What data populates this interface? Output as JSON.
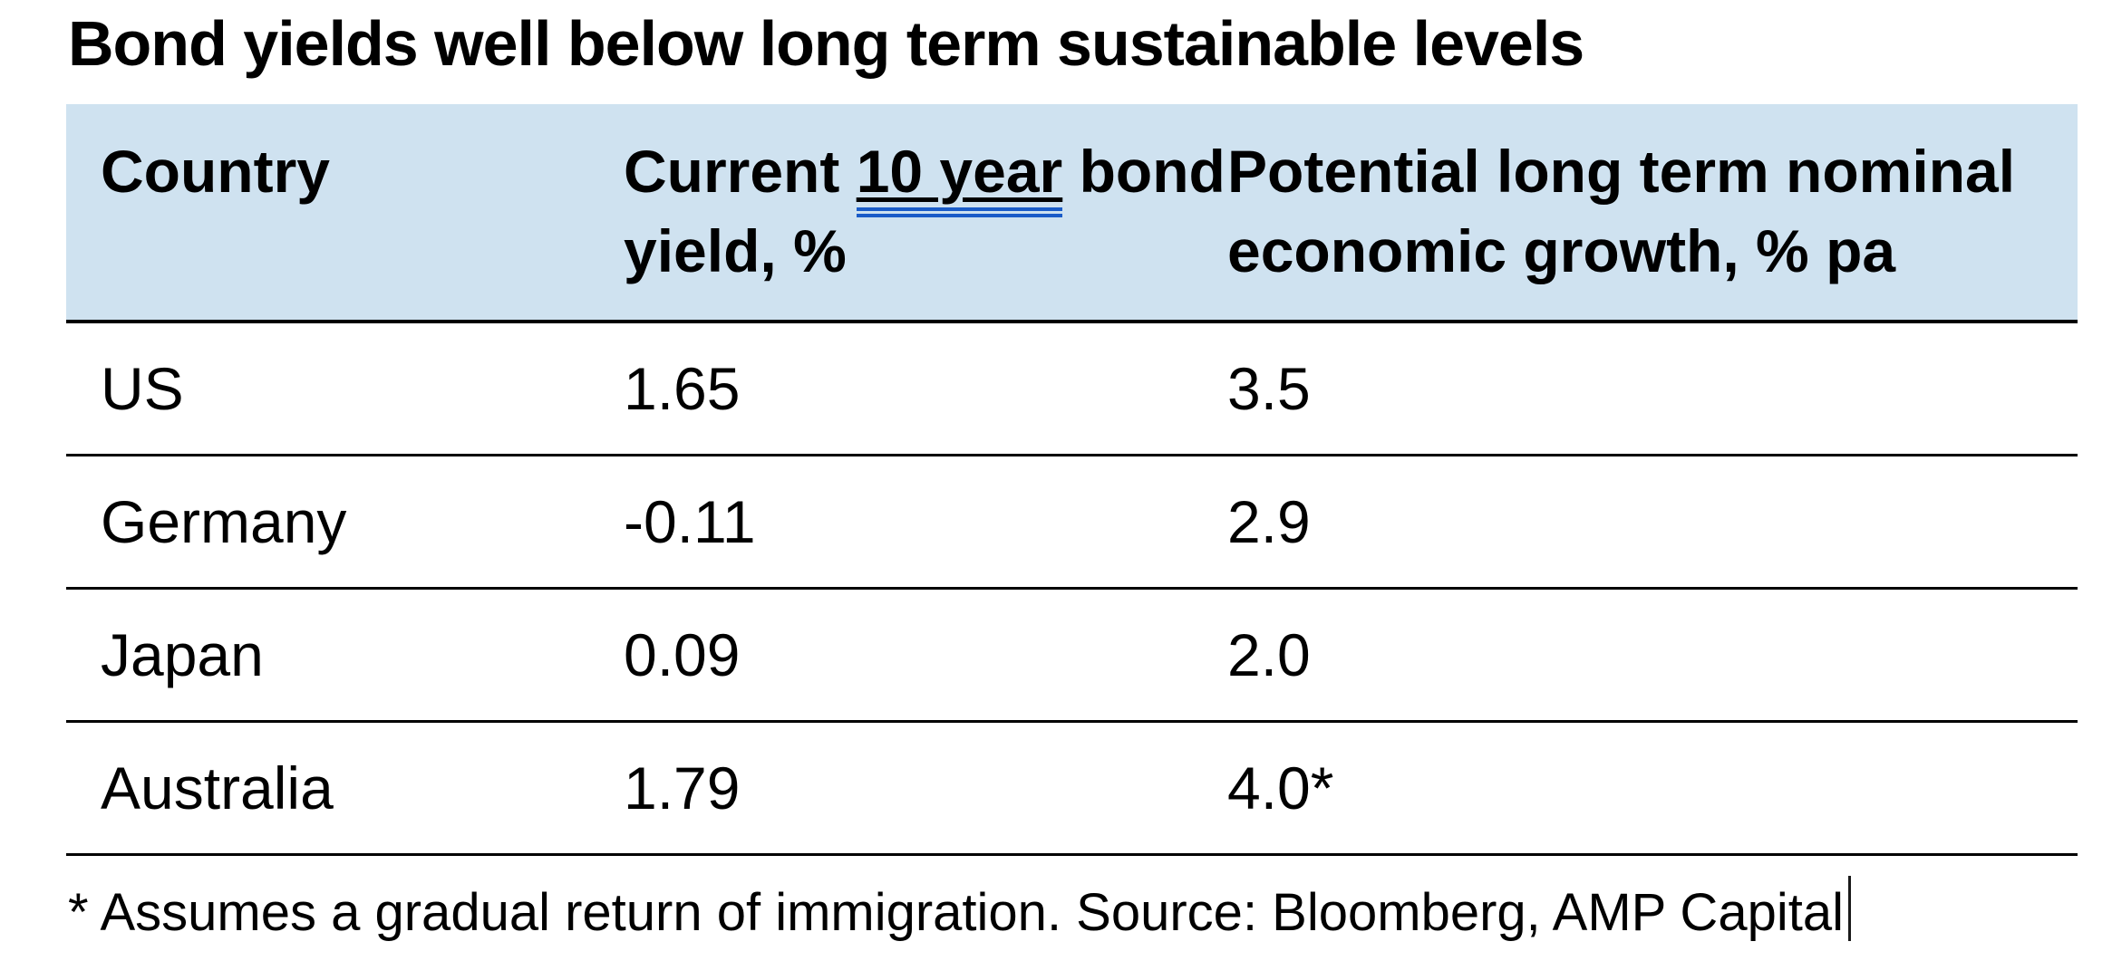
{
  "title": "Bond yields well below long term sustainable levels",
  "table": {
    "columns": [
      {
        "label": "Country"
      },
      {
        "label_prefix": "Current ",
        "label_underlined": "10 year",
        "label_suffix": " bond yield, %"
      },
      {
        "label": "Potential long term nominal economic growth, % pa"
      }
    ],
    "rows": [
      {
        "country": "US",
        "current_yield": "1.65",
        "potential_growth": "3.5"
      },
      {
        "country": "Germany",
        "current_yield": "-0.11",
        "potential_growth": "2.9"
      },
      {
        "country": "Japan",
        "current_yield": "0.09",
        "potential_growth": "2.0"
      },
      {
        "country": "Australia",
        "current_yield": "1.79",
        "potential_growth": "4.0*"
      }
    ]
  },
  "footnote": "* Assumes a gradual return of immigration. Source: Bloomberg, AMP Capital",
  "colors": {
    "header_bg": "#cfe2f0",
    "grammar_underline_blue": "#1a5cc8",
    "rule_black": "#000000"
  },
  "chart_data": {
    "type": "table",
    "title": "Bond yields well below long term sustainable levels",
    "columns": [
      "Country",
      "Current 10 year bond yield, %",
      "Potential long term nominal economic growth, % pa"
    ],
    "rows": [
      [
        "US",
        1.65,
        3.5
      ],
      [
        "Germany",
        -0.11,
        2.9
      ],
      [
        "Japan",
        0.09,
        2.0
      ],
      [
        "Australia",
        1.79,
        "4.0*"
      ]
    ],
    "footnote": "* Assumes a gradual return of immigration. Source: Bloomberg, AMP Capital"
  }
}
